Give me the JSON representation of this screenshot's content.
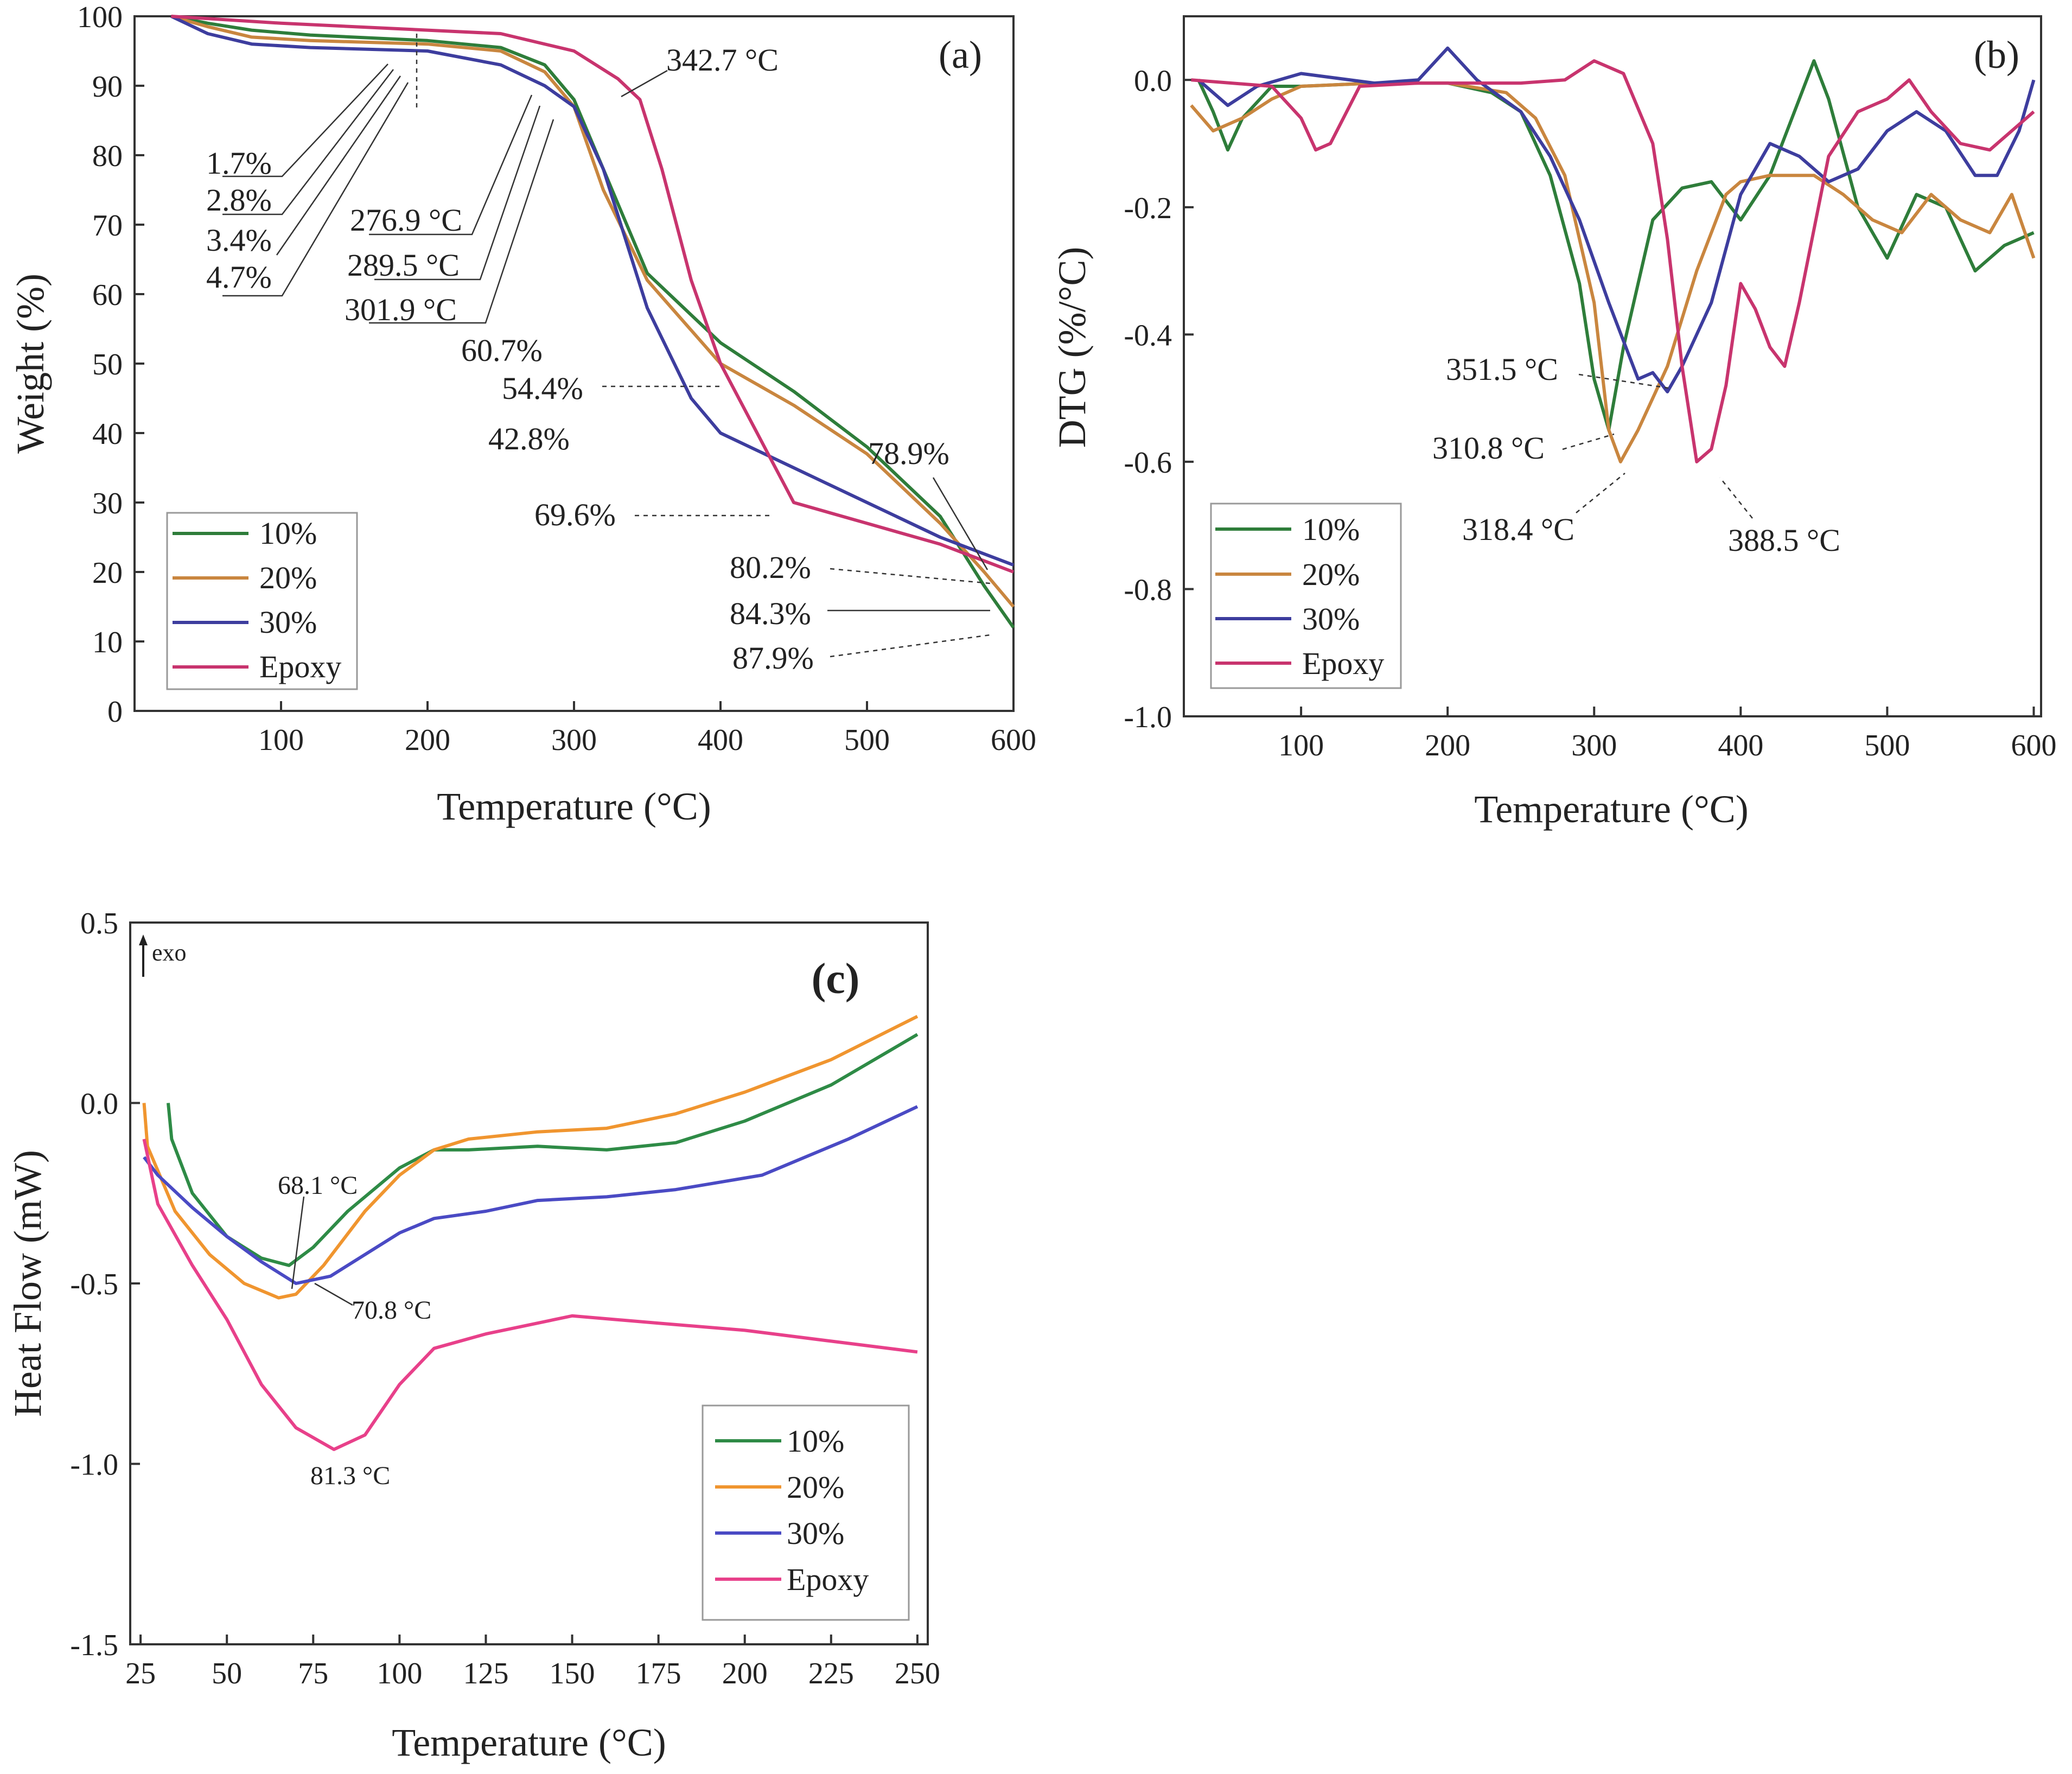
{
  "chart_data": [
    {
      "id": "a",
      "type": "line",
      "panel_label": "(a)",
      "xlabel": "Temperature (°C)",
      "ylabel": "Weight (%)",
      "xlim": [
        0,
        600
      ],
      "ylim": [
        0,
        100
      ],
      "xticks": [
        100,
        200,
        300,
        400,
        500,
        600
      ],
      "yticks": [
        0,
        10,
        20,
        30,
        40,
        50,
        60,
        70,
        80,
        90,
        100
      ],
      "series": [
        {
          "name": "10%",
          "color": "#2e7d3a",
          "x": [
            25,
            50,
            80,
            120,
            200,
            250,
            280,
            300,
            320,
            350,
            400,
            450,
            500,
            550,
            580,
            600
          ],
          "y": [
            100,
            99,
            98,
            97.3,
            96.5,
            95.5,
            93,
            88,
            78,
            63,
            53,
            46,
            38,
            28,
            18,
            12
          ]
        },
        {
          "name": "20%",
          "color": "#c9863f",
          "x": [
            25,
            50,
            80,
            120,
            200,
            250,
            280,
            300,
            320,
            350,
            400,
            450,
            500,
            550,
            580,
            600
          ],
          "y": [
            100,
            98.5,
            97,
            96.5,
            96,
            95,
            92,
            87,
            75,
            62,
            50,
            44,
            37,
            27,
            20,
            15
          ]
        },
        {
          "name": "30%",
          "color": "#3d3d9e",
          "x": [
            25,
            50,
            80,
            120,
            200,
            250,
            280,
            300,
            320,
            350,
            380,
            400,
            450,
            500,
            550,
            600
          ],
          "y": [
            100,
            97.5,
            96,
            95.5,
            95,
            93,
            90,
            87,
            78,
            58,
            45,
            40,
            35,
            30,
            25,
            21
          ]
        },
        {
          "name": "Epoxy",
          "color": "#c8346e",
          "x": [
            25,
            100,
            200,
            250,
            300,
            330,
            345,
            360,
            380,
            400,
            430,
            450,
            500,
            550,
            600
          ],
          "y": [
            100,
            99,
            98,
            97.5,
            95,
            91,
            88,
            78,
            62,
            50,
            38,
            30,
            27,
            24,
            20
          ]
        }
      ],
      "annotations": [
        "1.7%",
        "2.8%",
        "3.4%",
        "4.7%",
        "276.9 °C",
        "289.5 °C",
        "301.9 °C",
        "342.7 °C",
        "60.7%",
        "54.4%",
        "42.8%",
        "69.6%",
        "78.9%",
        "80.2%",
        "84.3%",
        "87.9%"
      ]
    },
    {
      "id": "b",
      "type": "line",
      "panel_label": "(b)",
      "xlabel": "Temperature (°C)",
      "ylabel": "DTG (%/°C)",
      "xlim": [
        20,
        605
      ],
      "ylim": [
        -1.0,
        0.1
      ],
      "xticks": [
        100,
        200,
        300,
        400,
        500,
        600
      ],
      "yticks": [
        0.0,
        -0.2,
        -0.4,
        -0.6,
        -0.8,
        -1.0
      ],
      "ytick_labels": [
        "0.0",
        "-0.2",
        "-0.4",
        "-0.6",
        "-0.8",
        "-1.0"
      ],
      "series": [
        {
          "name": "10%",
          "color": "#2e7d3a",
          "x": [
            30,
            40,
            50,
            60,
            80,
            100,
            150,
            200,
            230,
            250,
            270,
            290,
            300,
            310,
            320,
            330,
            340,
            360,
            380,
            400,
            420,
            440,
            450,
            460,
            480,
            500,
            520,
            540,
            560,
            580,
            600
          ],
          "y": [
            0.0,
            -0.05,
            -0.11,
            -0.06,
            -0.01,
            -0.01,
            -0.005,
            -0.005,
            -0.02,
            -0.05,
            -0.15,
            -0.32,
            -0.47,
            -0.55,
            -0.42,
            -0.32,
            -0.22,
            -0.17,
            -0.16,
            -0.22,
            -0.15,
            -0.03,
            0.03,
            -0.03,
            -0.2,
            -0.28,
            -0.18,
            -0.2,
            -0.3,
            -0.26,
            -0.24
          ]
        },
        {
          "name": "20%",
          "color": "#c9863f",
          "x": [
            25,
            40,
            60,
            80,
            100,
            150,
            200,
            240,
            260,
            280,
            300,
            310,
            318,
            330,
            350,
            370,
            390,
            400,
            420,
            450,
            470,
            490,
            510,
            530,
            550,
            570,
            585,
            600
          ],
          "y": [
            -0.04,
            -0.08,
            -0.06,
            -0.03,
            -0.01,
            -0.005,
            -0.005,
            -0.02,
            -0.06,
            -0.15,
            -0.35,
            -0.55,
            -0.6,
            -0.55,
            -0.45,
            -0.3,
            -0.18,
            -0.16,
            -0.15,
            -0.15,
            -0.18,
            -0.22,
            -0.24,
            -0.18,
            -0.22,
            -0.24,
            -0.18,
            -0.28
          ]
        },
        {
          "name": "30%",
          "color": "#3d3d9e",
          "x": [
            30,
            50,
            70,
            100,
            150,
            180,
            200,
            220,
            250,
            270,
            290,
            310,
            330,
            340,
            350,
            360,
            380,
            400,
            420,
            440,
            460,
            480,
            500,
            520,
            540,
            560,
            575,
            590,
            600
          ],
          "y": [
            0.0,
            -0.04,
            -0.01,
            0.01,
            -0.005,
            0.0,
            0.05,
            0.0,
            -0.05,
            -0.12,
            -0.22,
            -0.35,
            -0.47,
            -0.46,
            -0.49,
            -0.45,
            -0.35,
            -0.18,
            -0.1,
            -0.12,
            -0.16,
            -0.14,
            -0.08,
            -0.05,
            -0.08,
            -0.15,
            -0.15,
            -0.08,
            0.0
          ]
        },
        {
          "name": "Epoxy",
          "color": "#c8346e",
          "x": [
            25,
            80,
            100,
            110,
            120,
            140,
            180,
            250,
            280,
            300,
            320,
            340,
            350,
            360,
            370,
            380,
            390,
            400,
            410,
            420,
            430,
            440,
            460,
            480,
            500,
            515,
            530,
            550,
            570,
            590,
            600
          ],
          "y": [
            0.0,
            -0.01,
            -0.06,
            -0.11,
            -0.1,
            -0.01,
            -0.005,
            -0.005,
            0.0,
            0.03,
            0.01,
            -0.1,
            -0.25,
            -0.45,
            -0.6,
            -0.58,
            -0.48,
            -0.32,
            -0.36,
            -0.42,
            -0.45,
            -0.35,
            -0.12,
            -0.05,
            -0.03,
            0.0,
            -0.05,
            -0.1,
            -0.11,
            -0.07,
            -0.05
          ]
        }
      ],
      "annotations": [
        "351.5 °C",
        "310.8 °C",
        "318.4 °C",
        "388.5 °C"
      ]
    },
    {
      "id": "c",
      "type": "line",
      "panel_label": "(c)",
      "exo_label": "exo",
      "xlabel": "Temperature (°C)",
      "ylabel": "Heat Flow (mW)",
      "xlim": [
        22,
        253
      ],
      "ylim": [
        -1.5,
        0.5
      ],
      "xticks": [
        25,
        50,
        75,
        100,
        125,
        150,
        175,
        200,
        225,
        250
      ],
      "yticks": [
        0.5,
        0.0,
        -0.5,
        -1.0,
        -1.5
      ],
      "ytick_labels": [
        "0.5",
        "0.0",
        "-0.5",
        "-1.0",
        "-1.5"
      ],
      "series": [
        {
          "name": "10%",
          "color": "#2e8b46",
          "x": [
            33,
            34,
            40,
            50,
            60,
            68,
            75,
            85,
            100,
            110,
            120,
            140,
            160,
            180,
            200,
            225,
            250
          ],
          "y": [
            0.0,
            -0.1,
            -0.25,
            -0.37,
            -0.43,
            -0.45,
            -0.4,
            -0.3,
            -0.18,
            -0.13,
            -0.13,
            -0.12,
            -0.13,
            -0.11,
            -0.05,
            0.05,
            0.19
          ]
        },
        {
          "name": "20%",
          "color": "#f0952f",
          "x": [
            26,
            27,
            35,
            45,
            55,
            65,
            70,
            78,
            90,
            100,
            110,
            120,
            140,
            160,
            180,
            200,
            225,
            250
          ],
          "y": [
            0.0,
            -0.12,
            -0.3,
            -0.42,
            -0.5,
            -0.54,
            -0.53,
            -0.45,
            -0.3,
            -0.2,
            -0.13,
            -0.1,
            -0.08,
            -0.07,
            -0.03,
            0.03,
            0.12,
            0.24
          ]
        },
        {
          "name": "30%",
          "color": "#4a4ac4",
          "x": [
            26,
            30,
            40,
            50,
            60,
            70,
            80,
            90,
            100,
            110,
            125,
            140,
            160,
            180,
            205,
            210,
            230,
            250
          ],
          "y": [
            -0.15,
            -0.2,
            -0.29,
            -0.37,
            -0.44,
            -0.5,
            -0.48,
            -0.42,
            -0.36,
            -0.32,
            -0.3,
            -0.27,
            -0.26,
            -0.24,
            -0.2,
            -0.18,
            -0.1,
            -0.01
          ]
        },
        {
          "name": "Epoxy",
          "color": "#e8408a",
          "x": [
            26,
            30,
            40,
            50,
            60,
            70,
            81,
            90,
            100,
            110,
            125,
            135,
            150,
            175,
            200,
            225,
            250
          ],
          "y": [
            -0.1,
            -0.28,
            -0.45,
            -0.6,
            -0.78,
            -0.9,
            -0.96,
            -0.92,
            -0.78,
            -0.68,
            -0.64,
            -0.62,
            -0.59,
            -0.61,
            -0.63,
            -0.66,
            -0.69
          ]
        }
      ],
      "annotations": [
        "68.1 °C",
        "70.8 °C",
        "81.3 °C"
      ]
    }
  ]
}
